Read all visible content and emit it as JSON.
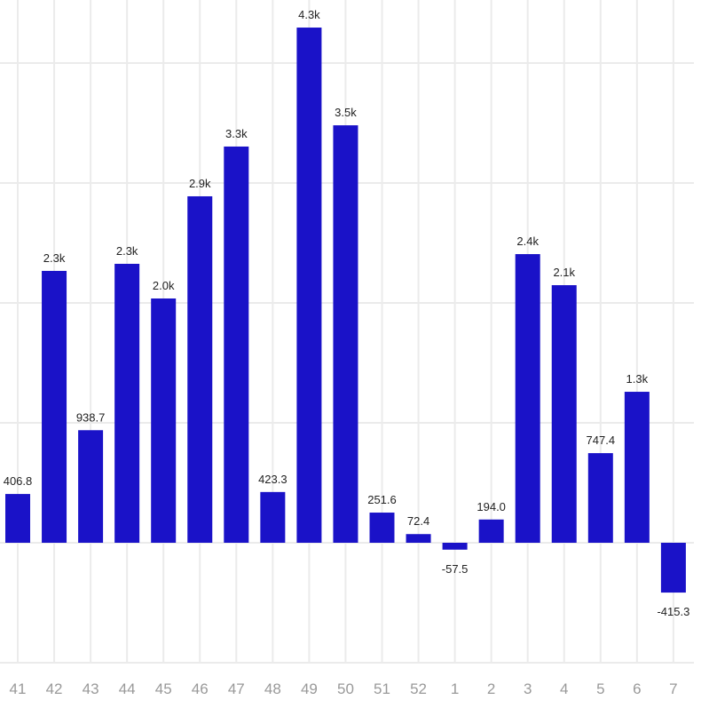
{
  "chart_data": {
    "type": "bar",
    "title": "",
    "xlabel": "",
    "ylabel": "",
    "categories": [
      "41",
      "42",
      "43",
      "44",
      "45",
      "46",
      "47",
      "48",
      "49",
      "50",
      "51",
      "52",
      "1",
      "2",
      "3",
      "4",
      "5",
      "6",
      "7"
    ],
    "values": [
      406.8,
      2267,
      938.7,
      2326,
      2037,
      2889,
      3304,
      423.3,
      4296,
      3481,
      251.6,
      72.4,
      -57.5,
      194.0,
      2407,
      2148,
      747.4,
      1259,
      -415.3
    ],
    "data_labels": [
      "406.8",
      "2.3k",
      "938.7",
      "2.3k",
      "2.0k",
      "2.9k",
      "3.3k",
      "423.3",
      "4.3k",
      "3.5k",
      "251.6",
      "72.4",
      "-57.5",
      "194.0",
      "2.4k",
      "2.1k",
      "747.4",
      "1.3k",
      "-415.3"
    ],
    "ylim": [
      -1000,
      4500
    ],
    "yticks": [
      -1000,
      0,
      1000,
      2000,
      3000,
      4000
    ],
    "grid": true,
    "bar_color": "#1a12c8"
  }
}
